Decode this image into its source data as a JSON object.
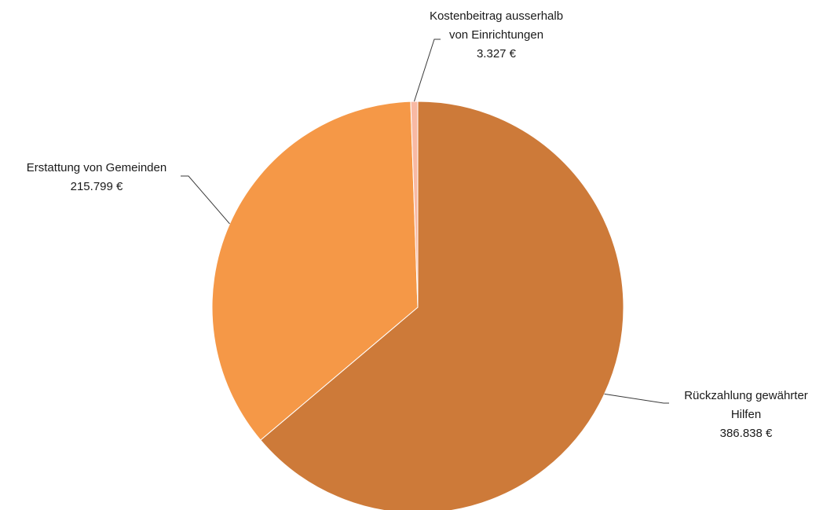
{
  "chart_data": {
    "type": "pie",
    "title": "",
    "slices": [
      {
        "label_lines": [
          "Rückzahlung gewährter",
          "Hilfen"
        ],
        "value": 386838,
        "value_label": "386.838 €",
        "color": "#CD7A39"
      },
      {
        "label_lines": [
          "Erstattung von Gemeinden"
        ],
        "value": 215799,
        "value_label": "215.799 €",
        "color": "#F59847"
      },
      {
        "label_lines": [
          "Kostenbeitrag ausserhalb",
          "von Einrichtungen"
        ],
        "value": 3327,
        "value_label": "3.327 €",
        "color": "#F8B9A3"
      }
    ],
    "start": "12 o'clock",
    "direction": "clockwise",
    "legend": "none",
    "data_labels": "outside-with-leader-lines"
  }
}
